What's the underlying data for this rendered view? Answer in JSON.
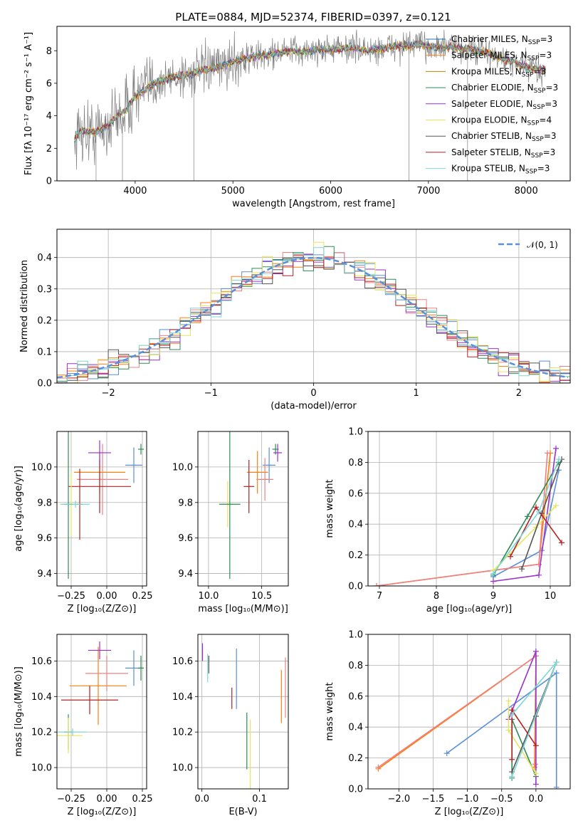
{
  "title": "PLATE=0884, MJD=52374, FIBERID=0397, z=0.121",
  "chart_data": [
    {
      "id": "spectrum",
      "type": "line",
      "xlabel": "wavelength [Angstrom, rest frame]",
      "ylabel": "Flux [fλ 10⁻¹⁷ erg cm⁻² s⁻¹ A⁻¹]",
      "xlim": [
        3200,
        8450
      ],
      "ylim": [
        0,
        9.5
      ],
      "xticks": [
        4000,
        5000,
        6000,
        7000,
        8000
      ],
      "yticks": [
        0,
        2,
        4,
        6,
        8
      ],
      "grid": false,
      "legend_position": "upper-right",
      "continuum": {
        "x": [
          3380,
          3450,
          3600,
          3700,
          3800,
          3900,
          4000,
          4100,
          4200,
          4300,
          4400,
          4500,
          4600,
          4700,
          4800,
          4900,
          5000,
          5100,
          5200,
          5300,
          5400,
          5500,
          5600,
          5700,
          5800,
          5900,
          6000,
          6100,
          6200,
          6300,
          6400,
          6500,
          6600,
          6700,
          6800,
          6900,
          7000,
          7100,
          7200,
          7300,
          7400,
          7500,
          7600,
          7700,
          7800,
          7900,
          8000,
          8100,
          8200
        ],
        "y": [
          2.6,
          3.1,
          3.0,
          3.3,
          3.9,
          4.3,
          5.2,
          5.6,
          6.0,
          6.2,
          6.4,
          6.5,
          6.6,
          6.8,
          6.9,
          7.1,
          7.3,
          7.5,
          7.6,
          7.7,
          7.8,
          7.9,
          8.0,
          7.9,
          8.0,
          8.1,
          8.1,
          8.1,
          8.2,
          8.1,
          8.0,
          8.1,
          8.2,
          8.3,
          8.3,
          8.4,
          8.3,
          8.2,
          8.2,
          8.2,
          8.1,
          8.0,
          7.9,
          7.6,
          7.4,
          7.2,
          7.0,
          6.9,
          6.8
        ]
      },
      "series": [
        {
          "name": "Chabrier MILES, N_SSP=3",
          "color": "#1f77b4"
        },
        {
          "name": "Salpeter MILES, N_SSP=3",
          "color": "#ff7f0e"
        },
        {
          "name": "Kroupa MILES, N_SSP=3",
          "color": "#b8860b"
        },
        {
          "name": "Chabrier ELODIE, N_SSP=3",
          "color": "#2e8b57"
        },
        {
          "name": "Salpeter ELODIE, N_SSP=3",
          "color": "#9932cc"
        },
        {
          "name": "Kroupa ELODIE, N_SSP=4",
          "color": "#e6e65c"
        },
        {
          "name": "Chabrier STELIB, N_SSP=3",
          "color": "#555555"
        },
        {
          "name": "Salpeter STELIB, N_SSP=3",
          "color": "#b22222"
        },
        {
          "name": "Kroupa STELIB, N_SSP=3",
          "color": "#7fd6d6"
        }
      ],
      "data_series": {
        "name": "data",
        "color": "#808080"
      }
    },
    {
      "id": "residuals",
      "type": "line",
      "xlabel": "(data-model)/error",
      "ylabel": "Normed distribution",
      "xlim": [
        -2.5,
        2.5
      ],
      "ylim": [
        0,
        0.49
      ],
      "xticks": [
        -2,
        -1,
        0,
        1,
        2
      ],
      "yticks": [
        0.0,
        0.1,
        0.2,
        0.3,
        0.4
      ],
      "grid": true,
      "legend_position": "upper-right",
      "legend": [
        "𝒩(0, 1)"
      ],
      "reference_curve": {
        "name": "N(0,1)",
        "mean": 0,
        "sigma": 1,
        "color": "#5b8fd9"
      },
      "histogram_colors": [
        "#5b8fd9",
        "#ff7f0e",
        "#f08080",
        "#2e8b57",
        "#9932cc",
        "#e6e65c",
        "#555555",
        "#b22222",
        "#7fd6d6"
      ]
    },
    {
      "id": "age-vs-Z",
      "type": "scatter",
      "xlabel": "Z [log₁₀(Z/Z⊙)]",
      "ylabel": "age  [log₁₀(age/yr)]",
      "xlim": [
        -0.35,
        0.28
      ],
      "ylim": [
        9.33,
        10.2
      ],
      "xticks": [
        -0.25,
        0.0,
        0.25
      ],
      "yticks": [
        9.4,
        9.6,
        9.8,
        10.0
      ],
      "grid": true,
      "points": [
        {
          "x": 0.19,
          "y": 10.01,
          "xerr": 0.06,
          "yerr": 0.1,
          "color": "#5b8fd9"
        },
        {
          "x": 0.24,
          "y": 10.1,
          "xerr": 0.02,
          "yerr": 0.03,
          "color": "#2e8b57"
        },
        {
          "x": -0.05,
          "y": 9.97,
          "xerr": 0.18,
          "yerr": 0.12,
          "color": "#ff7f0e"
        },
        {
          "x": -0.03,
          "y": 9.93,
          "xerr": 0.18,
          "yerr": 0.2,
          "color": "#f08080"
        },
        {
          "x": -0.05,
          "y": 9.89,
          "xerr": 0.22,
          "yerr": 0.15,
          "color": "#b22222"
        },
        {
          "x": -0.05,
          "y": 10.08,
          "xerr": 0.08,
          "yerr": 0.07,
          "color": "#9932cc"
        },
        {
          "x": -0.25,
          "y": 9.79,
          "xerr": 0.08,
          "yerr": 0.18,
          "color": "#e6e65c"
        },
        {
          "x": -0.27,
          "y": 9.79,
          "xerr": 0.03,
          "yerr": 0.42,
          "color": "#2e8b57"
        },
        {
          "x": -0.19,
          "y": 9.79,
          "xerr": 0.02,
          "yerr": 0.2,
          "color": "#b22222"
        },
        {
          "x": -0.22,
          "y": 9.79,
          "xerr": 0.1,
          "yerr": 0.02,
          "color": "#7fd6d6"
        }
      ]
    },
    {
      "id": "age-vs-mass",
      "type": "scatter",
      "xlabel": "mass [log₁₀(M/M⊙)]",
      "ylabel": "",
      "xlim": [
        9.9,
        10.75
      ],
      "ylim": [
        9.33,
        10.2
      ],
      "xticks": [
        10.0,
        10.5
      ],
      "yticks": [
        9.4,
        9.6,
        9.8,
        10.0
      ],
      "grid": true,
      "points": [
        {
          "x": 10.57,
          "y": 10.01,
          "xerr": 0.06,
          "yerr": 0.1,
          "color": "#5b8fd9"
        },
        {
          "x": 10.63,
          "y": 10.1,
          "xerr": 0.03,
          "yerr": 0.03,
          "color": "#2e8b57"
        },
        {
          "x": 10.46,
          "y": 9.97,
          "xerr": 0.1,
          "yerr": 0.12,
          "color": "#ff7f0e"
        },
        {
          "x": 10.53,
          "y": 9.93,
          "xerr": 0.08,
          "yerr": 0.12,
          "color": "#f08080"
        },
        {
          "x": 10.38,
          "y": 9.89,
          "xerr": 0.05,
          "yerr": 0.15,
          "color": "#b22222"
        },
        {
          "x": 10.65,
          "y": 10.08,
          "xerr": 0.04,
          "yerr": 0.05,
          "color": "#9932cc"
        },
        {
          "x": 10.18,
          "y": 9.79,
          "xerr": 0.06,
          "yerr": 0.13,
          "color": "#e6e65c"
        },
        {
          "x": 10.2,
          "y": 9.79,
          "xerr": 0.1,
          "yerr": 0.42,
          "color": "#2e8b57"
        }
      ]
    },
    {
      "id": "weight-vs-age",
      "type": "line",
      "xlabel": "age  [log₁₀(age/yr)]",
      "ylabel": "mass weight",
      "xlim": [
        6.8,
        10.35
      ],
      "ylim": [
        0,
        1.0
      ],
      "xticks": [
        7,
        8,
        9,
        10
      ],
      "yticks": [
        0.0,
        0.2,
        0.4,
        0.6,
        0.8,
        1.0
      ],
      "grid": true,
      "series": [
        {
          "color": "#5b8fd9",
          "x": [
            9.0,
            9.85,
            10.15
          ],
          "y": [
            0.06,
            0.23,
            0.75
          ]
        },
        {
          "color": "#ff7f0e",
          "x": [
            6.95,
            9.8,
            10.0
          ],
          "y": [
            0.0,
            0.14,
            0.86
          ]
        },
        {
          "color": "#f08080",
          "x": [
            6.95,
            9.8,
            9.95
          ],
          "y": [
            0.0,
            0.14,
            0.86
          ]
        },
        {
          "color": "#2e8b57",
          "x": [
            9.0,
            9.6,
            10.15
          ],
          "y": [
            0.07,
            0.45,
            0.8
          ]
        },
        {
          "color": "#9932cc",
          "x": [
            9.0,
            9.8,
            10.1
          ],
          "y": [
            0.03,
            0.07,
            0.89
          ]
        },
        {
          "color": "#e6e65c",
          "x": [
            9.0,
            9.75,
            10.1
          ],
          "y": [
            0.1,
            0.38,
            0.52
          ]
        },
        {
          "color": "#555555",
          "x": [
            9.5,
            9.85,
            10.2
          ],
          "y": [
            0.11,
            0.47,
            0.82
          ]
        },
        {
          "color": "#b22222",
          "x": [
            9.3,
            9.75,
            10.2
          ],
          "y": [
            0.19,
            0.51,
            0.28
          ]
        },
        {
          "color": "#7fd6d6",
          "x": [
            9.0,
            9.8,
            10.15
          ],
          "y": [
            0.08,
            0.48,
            0.82
          ]
        }
      ]
    },
    {
      "id": "mass-vs-Z",
      "type": "scatter",
      "xlabel": "Z [log₁₀(Z/Z⊙)]",
      "ylabel": "mass [log₁₀(M/M⊙)]",
      "xlim": [
        -0.35,
        0.28
      ],
      "ylim": [
        9.88,
        10.75
      ],
      "xticks": [
        -0.25,
        0.0,
        0.25
      ],
      "yticks": [
        10.0,
        10.2,
        10.4,
        10.6
      ],
      "grid": true,
      "points": [
        {
          "x": 0.19,
          "y": 10.56,
          "xerr": 0.06,
          "yerr": 0.1,
          "color": "#5b8fd9"
        },
        {
          "x": 0.24,
          "y": 10.56,
          "xerr": 0.02,
          "yerr": 0.07,
          "color": "#2e8b57"
        },
        {
          "x": -0.06,
          "y": 10.46,
          "xerr": 0.2,
          "yerr": 0.22,
          "color": "#ff7f0e"
        },
        {
          "x": 0.0,
          "y": 10.53,
          "xerr": 0.15,
          "yerr": 0.1,
          "color": "#f08080"
        },
        {
          "x": -0.12,
          "y": 10.38,
          "xerr": 0.2,
          "yerr": 0.08,
          "color": "#b22222"
        },
        {
          "x": -0.05,
          "y": 10.66,
          "xerr": 0.08,
          "yerr": 0.05,
          "color": "#9932cc"
        },
        {
          "x": -0.27,
          "y": 10.2,
          "xerr": 0.03,
          "yerr": 0.1,
          "color": "#2e8b57"
        },
        {
          "x": -0.27,
          "y": 10.18,
          "xerr": 0.1,
          "yerr": 0.1,
          "color": "#e6e65c"
        },
        {
          "x": -0.24,
          "y": 10.2,
          "xerr": 0.1,
          "yerr": 0.02,
          "color": "#7fd6d6"
        }
      ]
    },
    {
      "id": "mass-vs-EBV",
      "type": "scatter",
      "xlabel": "E(B-V)",
      "ylabel": "",
      "xlim": [
        -0.007,
        0.15
      ],
      "ylim": [
        9.88,
        10.75
      ],
      "xticks": [
        0.0,
        0.1
      ],
      "yticks": [
        10.0,
        10.2,
        10.4,
        10.6
      ],
      "grid": true,
      "points": [
        {
          "x": 0.001,
          "y": 10.65,
          "yerr": 0.05,
          "color": "#9932cc"
        },
        {
          "x": 0.012,
          "y": 10.58,
          "yerr": 0.05,
          "color": "#555555"
        },
        {
          "x": 0.01,
          "y": 10.56,
          "yerr": 0.08,
          "color": "#7fd6d6"
        },
        {
          "x": 0.06,
          "y": 10.5,
          "yerr": 0.17,
          "color": "#5b8fd9"
        },
        {
          "x": 0.052,
          "y": 10.39,
          "yerr": 0.06,
          "color": "#b22222"
        },
        {
          "x": 0.078,
          "y": 10.15,
          "yerr": 0.16,
          "color": "#2e8b57"
        },
        {
          "x": 0.084,
          "y": 10.07,
          "yerr": 0.2,
          "color": "#e6e65c"
        },
        {
          "x": 0.138,
          "y": 10.4,
          "yerr": 0.15,
          "color": "#ff7f0e"
        },
        {
          "x": 0.145,
          "y": 10.45,
          "yerr": 0.17,
          "color": "#f08080"
        }
      ]
    },
    {
      "id": "weight-vs-Z",
      "type": "line",
      "xlabel": "Z [log₁₀(Z/Z⊙)]",
      "ylabel": "mass weight",
      "xlim": [
        -2.45,
        0.5
      ],
      "ylim": [
        0,
        1.0
      ],
      "xticks": [
        -2.0,
        -1.5,
        -1.0,
        -0.5,
        0.0
      ],
      "yticks": [
        0.0,
        0.2,
        0.4,
        0.6,
        0.8,
        1.0
      ],
      "grid": true,
      "series": [
        {
          "color": "#5b8fd9",
          "x": [
            -1.3,
            0.3,
            0.3
          ],
          "y": [
            0.23,
            0.75,
            0.01
          ]
        },
        {
          "color": "#ff7f0e",
          "x": [
            -2.3,
            0.0,
            -0.02
          ],
          "y": [
            0.13,
            0.86,
            0.14
          ]
        },
        {
          "color": "#f08080",
          "x": [
            -2.3,
            0.0,
            -0.01
          ],
          "y": [
            0.14,
            0.86,
            0.16
          ]
        },
        {
          "color": "#2e8b57",
          "x": [
            -0.35,
            -0.35,
            0.0
          ],
          "y": [
            0.07,
            0.45,
            0.08
          ]
        },
        {
          "color": "#9932cc",
          "x": [
            -0.4,
            0.0,
            0.0
          ],
          "y": [
            0.45,
            0.89,
            0.03
          ]
        },
        {
          "color": "#e6e65c",
          "x": [
            -0.4,
            -0.4,
            0.0
          ],
          "y": [
            0.57,
            0.38,
            0.1
          ]
        },
        {
          "color": "#555555",
          "x": [
            -0.35,
            0.3,
            0.0
          ],
          "y": [
            0.11,
            0.82,
            0.47
          ]
        },
        {
          "color": "#b22222",
          "x": [
            -0.35,
            -0.35,
            0.0
          ],
          "y": [
            0.19,
            0.51,
            0.28
          ]
        },
        {
          "color": "#7fd6d6",
          "x": [
            -0.35,
            0.3,
            -0.35
          ],
          "y": [
            0.08,
            0.82,
            0.48
          ]
        }
      ]
    }
  ]
}
